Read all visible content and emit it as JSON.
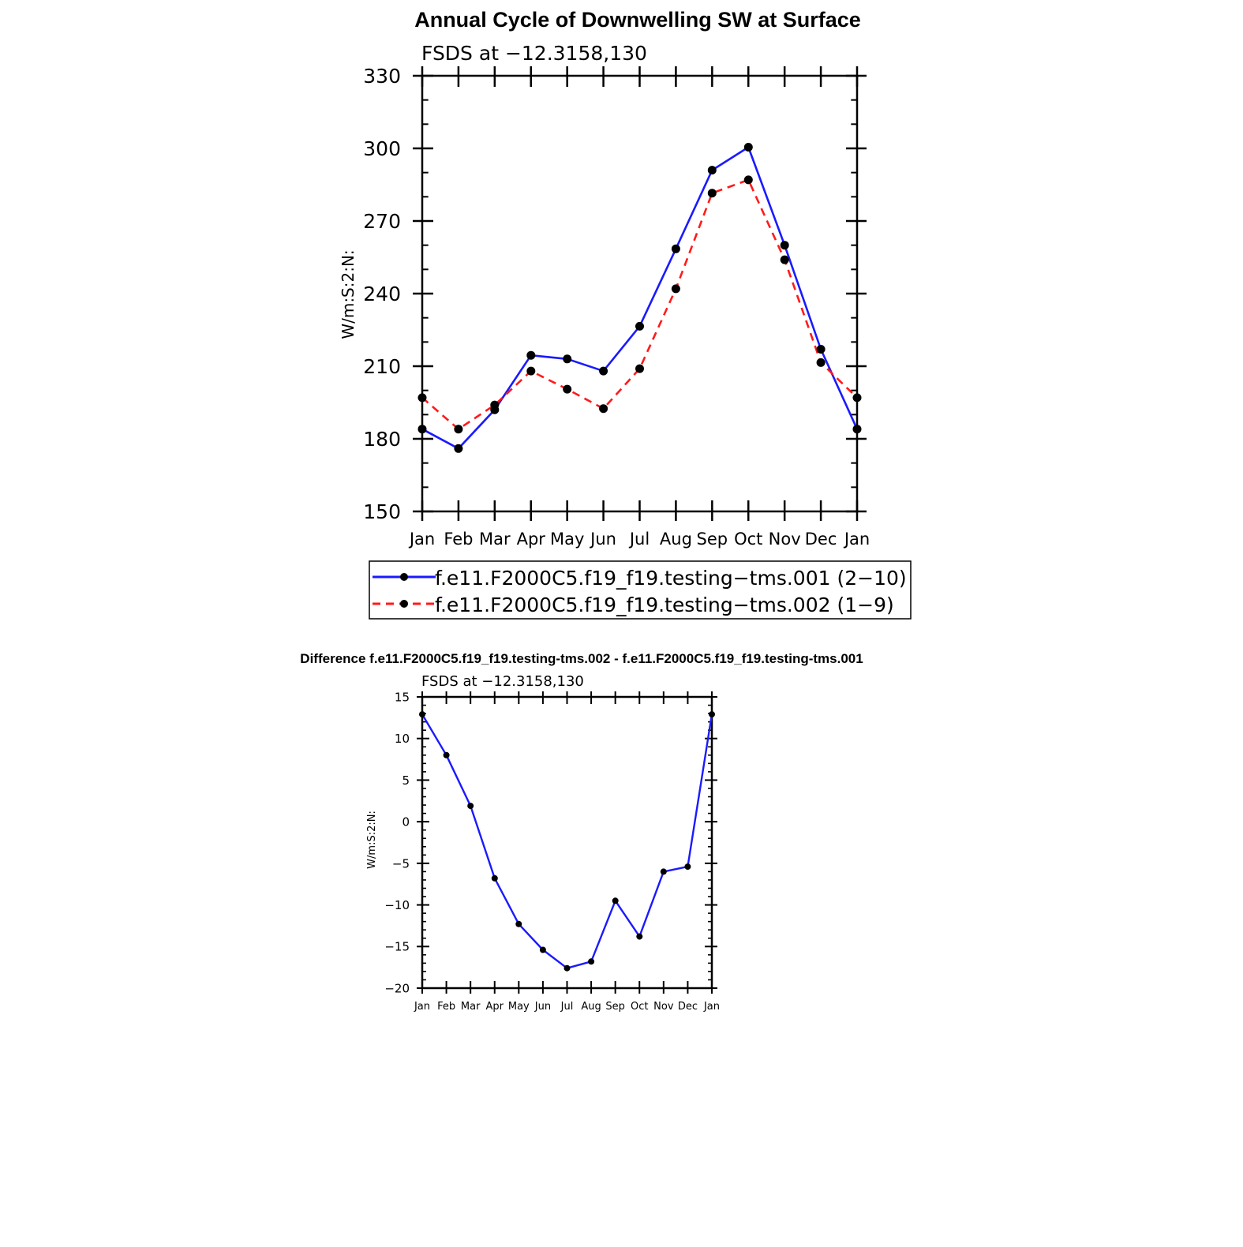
{
  "colors": {
    "series1": "#1a1aff",
    "series2": "#ff1a1a",
    "marker": "#000000",
    "axis": "#000000",
    "background": "#ffffff"
  },
  "chart_data": [
    {
      "type": "line",
      "title": "Annual Cycle of Downwelling SW at Surface",
      "subtitle": "FSDS at −12.3158,130",
      "ylabel": "W/m:S:2:N:",
      "xlabel": "",
      "categories": [
        "Jan",
        "Feb",
        "Mar",
        "Apr",
        "May",
        "Jun",
        "Jul",
        "Aug",
        "Sep",
        "Oct",
        "Nov",
        "Dec",
        "Jan"
      ],
      "yticks": [
        "150",
        "180",
        "210",
        "240",
        "270",
        "300",
        "330"
      ],
      "ylim": [
        150,
        330
      ],
      "grid": false,
      "legend": "below",
      "series": [
        {
          "name": "f.e11.F2000C5.f19_f19.testing−tms.001 (2−10)",
          "style": "solid",
          "color": "#1a1aff",
          "values": [
            184,
            176,
            192,
            214.5,
            213,
            208,
            226.5,
            258.5,
            291,
            300.5,
            260,
            217,
            184
          ]
        },
        {
          "name": "f.e11.F2000C5.f19_f19.testing−tms.002 (1−9)",
          "style": "dashed",
          "color": "#ff1a1a",
          "values": [
            197,
            184,
            194,
            208,
            200.5,
            192.5,
            209,
            242,
            281.5,
            287,
            254,
            211.5,
            197
          ]
        }
      ]
    },
    {
      "type": "line",
      "title": "Difference f.e11.F2000C5.f19_f19.testing-tms.002 - f.e11.F2000C5.f19_f19.testing-tms.001",
      "subtitle": "FSDS at −12.3158,130",
      "ylabel": "W/m:S:2:N:",
      "xlabel": "",
      "categories": [
        "Jan",
        "Feb",
        "Mar",
        "Apr",
        "May",
        "Jun",
        "Jul",
        "Aug",
        "Sep",
        "Oct",
        "Nov",
        "Dec",
        "Jan"
      ],
      "yticks": [
        "−20",
        "−15",
        "−10",
        "−5",
        "0",
        "5",
        "10",
        "15"
      ],
      "ylim": [
        -20,
        15
      ],
      "grid": false,
      "series": [
        {
          "color": "#1a1aff",
          "style": "solid",
          "values": [
            12.9,
            8,
            1.9,
            -6.8,
            -12.3,
            -15.4,
            -17.6,
            -16.8,
            -9.5,
            -13.8,
            -6,
            -5.4,
            12.9
          ]
        }
      ]
    }
  ]
}
